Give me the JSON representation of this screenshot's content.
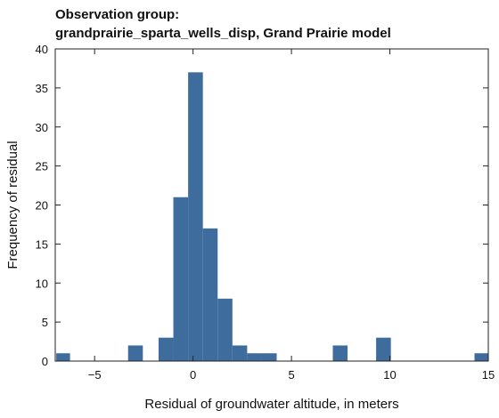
{
  "chart_data": {
    "type": "bar",
    "title_line1": "Observation group:",
    "title_line2": "grandprairie_sparta_wells_disp, Grand Prairie model",
    "xlabel": "Residual of groundwater altitude, in meters",
    "ylabel": "Frequency of residual",
    "xlim": [
      -7,
      15
    ],
    "ylim": [
      0,
      40
    ],
    "xticks": [
      -5,
      0,
      5,
      10,
      15
    ],
    "xtick_labels": [
      "−5",
      "0",
      "5",
      "10",
      "15"
    ],
    "yticks": [
      0,
      5,
      10,
      15,
      20,
      25,
      30,
      35,
      40
    ],
    "grid": false,
    "bar_color": "#3e6c9c",
    "bins": [
      {
        "x0": -6.95,
        "x1": -6.25,
        "count": 1
      },
      {
        "x0": -3.3,
        "x1": -2.55,
        "count": 2
      },
      {
        "x0": -1.75,
        "x1": -1.0,
        "count": 3
      },
      {
        "x0": -1.0,
        "x1": -0.25,
        "count": 21
      },
      {
        "x0": -0.25,
        "x1": 0.5,
        "count": 37
      },
      {
        "x0": 0.5,
        "x1": 1.25,
        "count": 17
      },
      {
        "x0": 1.25,
        "x1": 2.0,
        "count": 8
      },
      {
        "x0": 2.0,
        "x1": 2.75,
        "count": 2
      },
      {
        "x0": 2.75,
        "x1": 3.5,
        "count": 1
      },
      {
        "x0": 3.5,
        "x1": 4.25,
        "count": 1
      },
      {
        "x0": 7.1,
        "x1": 7.85,
        "count": 2
      },
      {
        "x0": 9.3,
        "x1": 10.05,
        "count": 3
      },
      {
        "x0": 14.3,
        "x1": 15.0,
        "count": 1
      }
    ]
  }
}
